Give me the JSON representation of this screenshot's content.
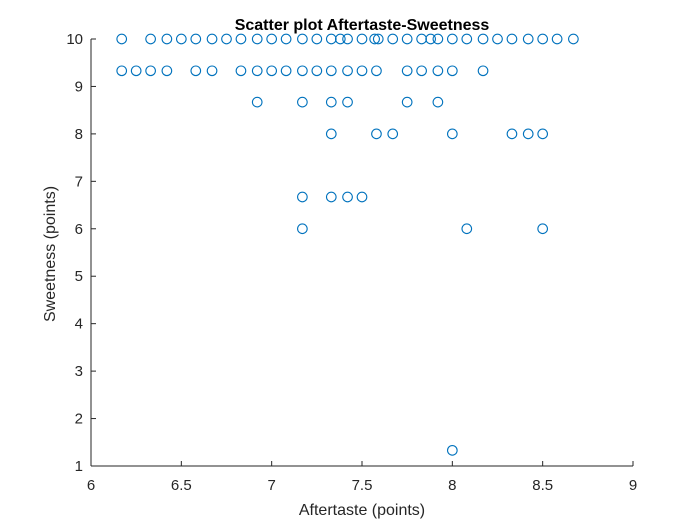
{
  "chart_data": {
    "type": "scatter",
    "title": "Scatter plot Aftertaste-Sweetness",
    "xlabel": "Aftertaste (points)",
    "ylabel": "Sweetness (points)",
    "xlim": [
      6,
      9
    ],
    "ylim": [
      1,
      10
    ],
    "xticks": [
      6,
      6.5,
      7,
      7.5,
      8,
      8.5,
      9
    ],
    "xtick_labels": [
      "6",
      "6.5",
      "7",
      "7.5",
      "8",
      "8.5",
      "9"
    ],
    "yticks": [
      1,
      2,
      3,
      4,
      5,
      6,
      7,
      8,
      9,
      10
    ],
    "ytick_labels": [
      "1",
      "2",
      "3",
      "4",
      "5",
      "6",
      "7",
      "8",
      "9",
      "10"
    ],
    "grid": false,
    "marker": "open-circle",
    "marker_color": "#0072BD",
    "series": [
      {
        "points": [
          [
            6.17,
            10
          ],
          [
            6.33,
            10
          ],
          [
            6.42,
            10
          ],
          [
            6.5,
            10
          ],
          [
            6.58,
            10
          ],
          [
            6.67,
            10
          ],
          [
            6.75,
            10
          ],
          [
            6.83,
            10
          ],
          [
            6.92,
            10
          ],
          [
            7.0,
            10
          ],
          [
            7.08,
            10
          ],
          [
            7.17,
            10
          ],
          [
            7.25,
            10
          ],
          [
            7.33,
            10
          ],
          [
            7.38,
            10
          ],
          [
            7.42,
            10
          ],
          [
            7.5,
            10
          ],
          [
            7.57,
            10
          ],
          [
            7.59,
            10
          ],
          [
            7.67,
            10
          ],
          [
            7.75,
            10
          ],
          [
            7.83,
            10
          ],
          [
            7.88,
            10
          ],
          [
            7.92,
            10
          ],
          [
            8.0,
            10
          ],
          [
            8.08,
            10
          ],
          [
            8.17,
            10
          ],
          [
            8.25,
            10
          ],
          [
            8.33,
            10
          ],
          [
            8.42,
            10
          ],
          [
            8.5,
            10
          ],
          [
            8.58,
            10
          ],
          [
            8.67,
            10
          ],
          [
            6.17,
            9.33
          ],
          [
            6.25,
            9.33
          ],
          [
            6.33,
            9.33
          ],
          [
            6.42,
            9.33
          ],
          [
            6.58,
            9.33
          ],
          [
            6.67,
            9.33
          ],
          [
            6.83,
            9.33
          ],
          [
            6.92,
            9.33
          ],
          [
            7.0,
            9.33
          ],
          [
            7.08,
            9.33
          ],
          [
            7.17,
            9.33
          ],
          [
            7.25,
            9.33
          ],
          [
            7.33,
            9.33
          ],
          [
            7.42,
            9.33
          ],
          [
            7.5,
            9.33
          ],
          [
            7.58,
            9.33
          ],
          [
            7.75,
            9.33
          ],
          [
            7.83,
            9.33
          ],
          [
            7.92,
            9.33
          ],
          [
            8.0,
            9.33
          ],
          [
            8.17,
            9.33
          ],
          [
            6.92,
            8.67
          ],
          [
            7.17,
            8.67
          ],
          [
            7.33,
            8.67
          ],
          [
            7.42,
            8.67
          ],
          [
            7.75,
            8.67
          ],
          [
            7.92,
            8.67
          ],
          [
            7.33,
            8
          ],
          [
            7.58,
            8
          ],
          [
            7.67,
            8
          ],
          [
            8.0,
            8
          ],
          [
            8.33,
            8
          ],
          [
            8.42,
            8
          ],
          [
            8.5,
            8
          ],
          [
            7.17,
            6.67
          ],
          [
            7.33,
            6.67
          ],
          [
            7.42,
            6.67
          ],
          [
            7.5,
            6.67
          ],
          [
            7.17,
            6
          ],
          [
            8.08,
            6
          ],
          [
            8.5,
            6
          ],
          [
            8.0,
            1.33
          ]
        ]
      }
    ]
  }
}
